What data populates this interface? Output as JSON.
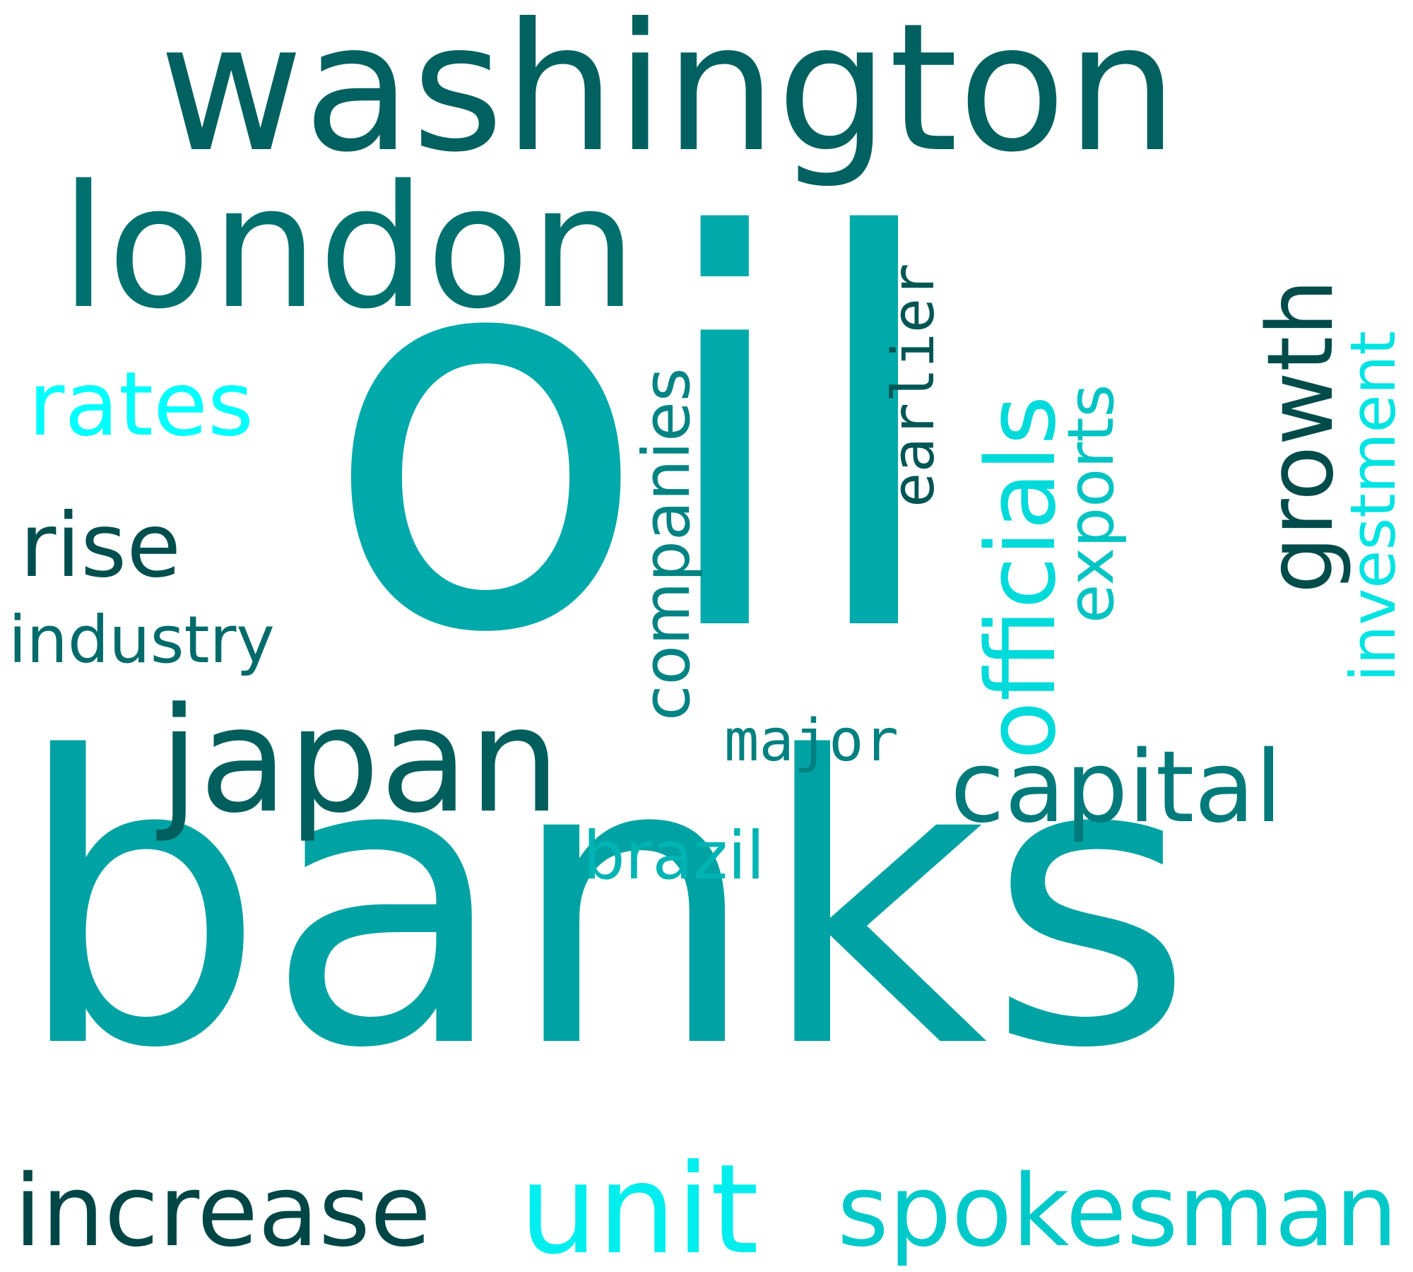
{
  "words": {
    "oil": {
      "text": "oil",
      "color": "#00a9aa"
    },
    "banks": {
      "text": "banks",
      "color": "#00a2a3"
    },
    "washington": {
      "text": "washington",
      "color": "#006160"
    },
    "london": {
      "text": "london",
      "color": "#00706f"
    },
    "japan": {
      "text": "japan",
      "color": "#005e5d"
    },
    "capital": {
      "text": "capital",
      "color": "#007a7a"
    },
    "rates": {
      "text": "rates",
      "color": "#00ffff"
    },
    "rise": {
      "text": "rise",
      "color": "#004f4e"
    },
    "industry": {
      "text": "industry",
      "color": "#006b6b"
    },
    "increase": {
      "text": "increase",
      "color": "#004646"
    },
    "unit": {
      "text": "unit",
      "color": "#00eeee"
    },
    "spokesman": {
      "text": "spokesman",
      "color": "#00c9c9"
    },
    "brazil": {
      "text": "brazil",
      "color": "#00b4b4"
    },
    "major": {
      "text": "major",
      "color": "#008080"
    },
    "companies": {
      "text": "companies",
      "color": "#008383"
    },
    "earlier": {
      "text": "earlier",
      "color": "#005555"
    },
    "officials": {
      "text": "officials",
      "color": "#00dada"
    },
    "exports": {
      "text": "exports",
      "color": "#00c3c3"
    },
    "growth": {
      "text": "growth",
      "color": "#004c4b"
    },
    "investment": {
      "text": "investment",
      "color": "#00e3e3"
    }
  }
}
